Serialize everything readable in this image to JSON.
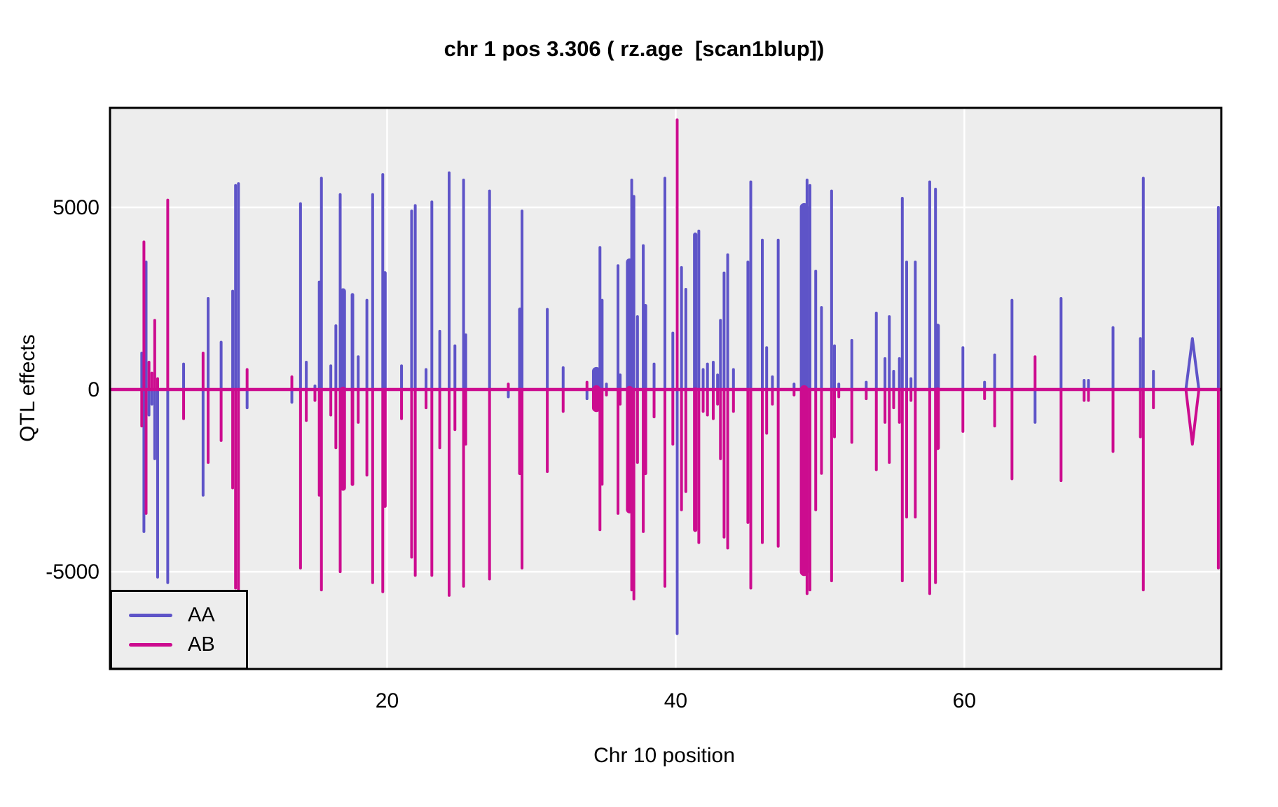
{
  "chart_data": {
    "type": "line",
    "title": "chr 1 pos 3.306 ( rz.age  [scan1blup])",
    "xlabel": "Chr 10 position",
    "ylabel": "QTL effects",
    "xlim": [
      0.8,
      77.8
    ],
    "ylim": [
      -7670,
      7730
    ],
    "x_ticks": [
      20,
      40,
      60
    ],
    "y_ticks": [
      -5000,
      0,
      5000
    ],
    "grid": true,
    "grid_color": "#FFFFFF",
    "panel_bg": "#EDEDED",
    "panel_border_color": "#000000",
    "baseline": 0,
    "legend_position": "bottom-left",
    "series_names": [
      "AA",
      "AB"
    ],
    "colors": {
      "AA": "#5E54C8",
      "AB": "#CC0C8F"
    },
    "spike_note": "each spike = [chr_position, AA_effect, AB_effect, optional_halfwidth, optional_shape]",
    "spikes": [
      [
        3.0,
        1000,
        -1000
      ],
      [
        3.15,
        -3900,
        4050
      ],
      [
        3.3,
        3500,
        -3400
      ],
      [
        3.5,
        -700,
        750
      ],
      [
        3.7,
        -400,
        450
      ],
      [
        3.9,
        -1900,
        1900
      ],
      [
        4.1,
        -5150,
        300
      ],
      [
        4.8,
        -5300,
        5200
      ],
      [
        5.9,
        700,
        -800
      ],
      [
        7.25,
        -2900,
        1000
      ],
      [
        7.6,
        2500,
        -2000
      ],
      [
        8.5,
        1300,
        -1400
      ],
      [
        9.3,
        2700,
        -2700
      ],
      [
        9.5,
        5600,
        -5450
      ],
      [
        9.7,
        5650,
        -5600
      ],
      [
        10.3,
        -500,
        550
      ],
      [
        13.4,
        -350,
        350
      ],
      [
        14.0,
        5100,
        -4900
      ],
      [
        14.4,
        750,
        -850
      ],
      [
        15.0,
        100,
        -300
      ],
      [
        15.3,
        2950,
        -2900
      ],
      [
        15.45,
        5800,
        -5500
      ],
      [
        16.1,
        650,
        -700
      ],
      [
        16.45,
        1750,
        -1600
      ],
      [
        16.75,
        5350,
        -5000
      ],
      [
        16.95,
        2700,
        -2700,
        0.2
      ],
      [
        17.6,
        2600,
        -2600,
        0.12
      ],
      [
        18.0,
        900,
        -900
      ],
      [
        18.6,
        2450,
        -2350
      ],
      [
        19.0,
        5350,
        -5300
      ],
      [
        19.7,
        5900,
        -5550
      ],
      [
        19.85,
        3200,
        -3200,
        0.12
      ],
      [
        21.0,
        650,
        -800
      ],
      [
        21.7,
        4900,
        -4600
      ],
      [
        21.95,
        5050,
        -5100
      ],
      [
        22.7,
        550,
        -500
      ],
      [
        23.1,
        5150,
        -5100
      ],
      [
        23.65,
        1600,
        -1600
      ],
      [
        24.3,
        5950,
        -5650
      ],
      [
        24.7,
        1200,
        -1100
      ],
      [
        25.3,
        5750,
        -5400
      ],
      [
        25.45,
        1500,
        -1500
      ],
      [
        27.1,
        5450,
        -5200
      ],
      [
        28.4,
        -200,
        150
      ],
      [
        29.2,
        2200,
        -2300,
        0.12
      ],
      [
        29.35,
        4900,
        -4900
      ],
      [
        31.1,
        2200,
        -2250
      ],
      [
        32.2,
        600,
        -600
      ],
      [
        33.85,
        -250,
        200
      ],
      [
        34.5,
        500,
        -500,
        0.3
      ],
      [
        34.75,
        3900,
        -3850
      ],
      [
        34.9,
        2450,
        -2600
      ],
      [
        35.2,
        150,
        -150
      ],
      [
        36.0,
        3400,
        -3400
      ],
      [
        36.15,
        400,
        -400
      ],
      [
        36.8,
        3500,
        -3300,
        0.25
      ],
      [
        36.95,
        5750,
        -5500
      ],
      [
        37.1,
        5300,
        -5750
      ],
      [
        37.35,
        2000,
        -2000
      ],
      [
        37.75,
        3950,
        -3900
      ],
      [
        37.9,
        2300,
        -2300,
        0.12
      ],
      [
        38.5,
        700,
        -750
      ],
      [
        39.25,
        5800,
        -5400
      ],
      [
        39.8,
        1550,
        -1500
      ],
      [
        40.1,
        -6700,
        7400
      ],
      [
        40.4,
        3350,
        -3300
      ],
      [
        40.7,
        2750,
        -2800
      ],
      [
        41.35,
        4250,
        -3850,
        0.15
      ],
      [
        41.6,
        4350,
        -4200
      ],
      [
        41.9,
        550,
        -600
      ],
      [
        42.2,
        700,
        -700
      ],
      [
        42.6,
        750,
        -800
      ],
      [
        42.9,
        400,
        -400
      ],
      [
        43.1,
        1900,
        -1900
      ],
      [
        43.35,
        3200,
        -4050
      ],
      [
        43.6,
        3700,
        -4350
      ],
      [
        44.0,
        550,
        -600
      ],
      [
        45.0,
        3500,
        -3650
      ],
      [
        45.2,
        5700,
        -5450
      ],
      [
        46.0,
        4100,
        -4200
      ],
      [
        46.3,
        1150,
        -1200
      ],
      [
        46.7,
        350,
        -400
      ],
      [
        47.1,
        4100,
        -4300
      ],
      [
        48.2,
        150,
        -150
      ],
      [
        48.9,
        5000,
        -5000,
        0.3
      ],
      [
        49.1,
        5750,
        -5600
      ],
      [
        49.3,
        5600,
        -5500
      ],
      [
        49.7,
        3250,
        -3300
      ],
      [
        50.1,
        2250,
        -2300
      ],
      [
        50.8,
        5450,
        -5250
      ],
      [
        51.0,
        1200,
        -1300
      ],
      [
        51.3,
        150,
        -200
      ],
      [
        52.2,
        1350,
        -1450
      ],
      [
        53.2,
        200,
        -250
      ],
      [
        53.9,
        2100,
        -2200
      ],
      [
        54.5,
        850,
        -900
      ],
      [
        54.8,
        2000,
        -2000
      ],
      [
        55.1,
        500,
        -500
      ],
      [
        55.5,
        850,
        -900
      ],
      [
        55.7,
        5250,
        -5250
      ],
      [
        56.0,
        3500,
        -3500
      ],
      [
        56.3,
        300,
        -300
      ],
      [
        56.6,
        3500,
        -3500
      ],
      [
        57.6,
        5700,
        -5600
      ],
      [
        58.0,
        5500,
        -5300
      ],
      [
        58.15,
        1750,
        -1600,
        0.15
      ],
      [
        59.9,
        1150,
        -1150
      ],
      [
        61.4,
        200,
        -250
      ],
      [
        62.1,
        950,
        -1000
      ],
      [
        63.3,
        2450,
        -2450
      ],
      [
        64.9,
        -900,
        900
      ],
      [
        66.7,
        2500,
        -2500
      ],
      [
        68.3,
        250,
        -300
      ],
      [
        68.6,
        250,
        -300
      ],
      [
        70.3,
        1700,
        -1700
      ],
      [
        72.2,
        1400,
        -1300
      ],
      [
        72.4,
        5800,
        -5500
      ],
      [
        73.1,
        500,
        -500
      ],
      [
        75.8,
        1400,
        -1500,
        0.45,
        "lens"
      ],
      [
        77.6,
        5000,
        -4900
      ]
    ]
  },
  "legend": {
    "items": [
      {
        "label": "AA",
        "color": "#5E54C8"
      },
      {
        "label": "AB",
        "color": "#CC0C8F"
      }
    ]
  }
}
